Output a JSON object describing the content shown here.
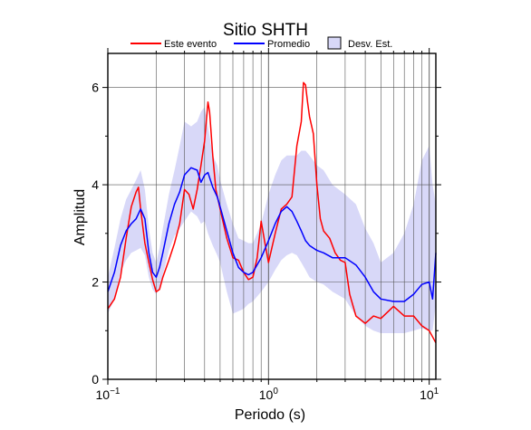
{
  "chart_data": {
    "type": "line",
    "title": "Sitio SHTH",
    "xlabel": "Periodo (s)",
    "ylabel": "Amplitud",
    "xscale": "log",
    "xlim": [
      0.1,
      11
    ],
    "ylim": [
      0,
      6.7
    ],
    "x_ticks": [
      {
        "value": 0.1,
        "base": "10",
        "exp": "−1"
      },
      {
        "value": 1,
        "base": "10",
        "exp": "0"
      },
      {
        "value": 10,
        "base": "10",
        "exp": "1"
      }
    ],
    "y_ticks": [
      0,
      2,
      4,
      6
    ],
    "grid": true,
    "legend_placement": "top",
    "legend": [
      {
        "label": "Este evento",
        "kind": "line",
        "color": "#ff0000"
      },
      {
        "label": "Promedio",
        "kind": "line",
        "color": "#0000ff"
      },
      {
        "label": "Desv. Est.",
        "kind": "box",
        "color": "#d8d8f8"
      }
    ],
    "series": [
      {
        "name": "Este evento",
        "color": "#ff0000",
        "x": [
          0.1,
          0.11,
          0.12,
          0.13,
          0.14,
          0.15,
          0.155,
          0.16,
          0.17,
          0.18,
          0.19,
          0.2,
          0.21,
          0.22,
          0.24,
          0.26,
          0.28,
          0.3,
          0.32,
          0.34,
          0.36,
          0.38,
          0.4,
          0.42,
          0.43,
          0.45,
          0.47,
          0.5,
          0.55,
          0.6,
          0.65,
          0.7,
          0.75,
          0.8,
          0.85,
          0.9,
          0.95,
          1.0,
          1.1,
          1.2,
          1.3,
          1.4,
          1.5,
          1.6,
          1.65,
          1.7,
          1.75,
          1.8,
          1.9,
          2.0,
          2.1,
          2.2,
          2.4,
          2.6,
          2.8,
          3.0,
          3.2,
          3.5,
          4.0,
          4.5,
          5.0,
          6.0,
          7.0,
          8.0,
          9.0,
          10.0,
          11.0
        ],
        "y": [
          1.45,
          1.65,
          2.1,
          2.9,
          3.55,
          3.85,
          3.95,
          3.5,
          2.8,
          2.4,
          2.05,
          1.8,
          1.85,
          2.1,
          2.45,
          2.8,
          3.2,
          3.9,
          3.8,
          3.5,
          3.9,
          4.4,
          4.9,
          5.7,
          5.5,
          4.6,
          3.9,
          3.5,
          2.9,
          2.5,
          2.45,
          2.2,
          2.05,
          2.1,
          2.5,
          3.25,
          2.8,
          2.4,
          3.0,
          3.5,
          3.6,
          3.75,
          4.8,
          5.3,
          6.1,
          6.05,
          5.7,
          5.4,
          5.05,
          4.0,
          3.3,
          3.05,
          2.9,
          2.6,
          2.45,
          2.4,
          1.75,
          1.3,
          1.15,
          1.3,
          1.25,
          1.5,
          1.3,
          1.3,
          1.1,
          1.0,
          0.75
        ]
      },
      {
        "name": "Promedio",
        "color": "#0000ff",
        "x": [
          0.1,
          0.11,
          0.12,
          0.13,
          0.14,
          0.15,
          0.16,
          0.17,
          0.18,
          0.19,
          0.2,
          0.21,
          0.22,
          0.24,
          0.26,
          0.28,
          0.3,
          0.33,
          0.36,
          0.38,
          0.4,
          0.42,
          0.45,
          0.48,
          0.5,
          0.55,
          0.6,
          0.65,
          0.7,
          0.75,
          0.8,
          0.9,
          1.0,
          1.1,
          1.2,
          1.3,
          1.4,
          1.5,
          1.6,
          1.7,
          1.8,
          2.0,
          2.2,
          2.5,
          3.0,
          3.5,
          4.0,
          4.5,
          5.0,
          6.0,
          7.0,
          8.0,
          9.0,
          10.0,
          10.5,
          11.0
        ],
        "y": [
          1.8,
          2.2,
          2.75,
          3.05,
          3.2,
          3.3,
          3.5,
          3.3,
          2.6,
          2.2,
          2.1,
          2.3,
          2.6,
          3.2,
          3.6,
          3.85,
          4.2,
          4.35,
          4.3,
          4.05,
          4.2,
          4.25,
          3.95,
          3.75,
          3.55,
          3.05,
          2.6,
          2.3,
          2.2,
          2.15,
          2.2,
          2.5,
          2.85,
          3.2,
          3.45,
          3.55,
          3.45,
          3.25,
          3.05,
          2.85,
          2.75,
          2.65,
          2.6,
          2.5,
          2.5,
          2.35,
          2.1,
          1.8,
          1.65,
          1.6,
          1.6,
          1.75,
          1.95,
          2.0,
          1.65,
          2.6
        ]
      }
    ],
    "band": {
      "name": "Desv. Est.",
      "color": "#d8d8f8",
      "x": [
        0.1,
        0.11,
        0.12,
        0.13,
        0.14,
        0.15,
        0.16,
        0.17,
        0.18,
        0.19,
        0.2,
        0.21,
        0.22,
        0.24,
        0.26,
        0.28,
        0.3,
        0.33,
        0.36,
        0.38,
        0.4,
        0.42,
        0.45,
        0.48,
        0.5,
        0.55,
        0.6,
        0.65,
        0.7,
        0.75,
        0.8,
        0.9,
        1.0,
        1.1,
        1.2,
        1.3,
        1.4,
        1.5,
        1.6,
        1.7,
        1.8,
        2.0,
        2.2,
        2.5,
        3.0,
        3.5,
        4.0,
        4.5,
        5.0,
        6.0,
        7.0,
        8.0,
        9.0,
        10.0,
        10.5,
        11.0
      ],
      "upper": [
        2.1,
        2.7,
        3.3,
        3.7,
        3.9,
        4.1,
        4.3,
        3.9,
        3.1,
        2.6,
        2.4,
        2.7,
        3.1,
        3.8,
        4.3,
        4.8,
        5.3,
        5.2,
        5.3,
        5.5,
        5.6,
        5.2,
        4.6,
        4.4,
        4.1,
        3.6,
        3.2,
        2.9,
        2.85,
        2.8,
        2.8,
        3.2,
        3.8,
        4.2,
        4.5,
        4.6,
        4.6,
        4.6,
        4.7,
        4.7,
        4.6,
        4.4,
        4.3,
        4.0,
        3.8,
        3.6,
        3.1,
        2.8,
        2.4,
        2.6,
        3.0,
        3.6,
        4.5,
        4.8,
        4.0,
        3.6
      ],
      "lower": [
        1.35,
        1.65,
        2.2,
        2.45,
        2.6,
        2.65,
        2.7,
        2.55,
        2.1,
        1.85,
        1.75,
        1.9,
        2.15,
        2.65,
        2.95,
        3.1,
        3.25,
        3.45,
        3.35,
        3.2,
        3.25,
        3.0,
        2.75,
        2.55,
        2.4,
        1.8,
        1.35,
        1.4,
        1.45,
        1.55,
        1.6,
        1.8,
        2.0,
        2.25,
        2.45,
        2.55,
        2.6,
        2.55,
        2.4,
        2.25,
        2.1,
        2.0,
        1.95,
        1.8,
        1.65,
        1.3,
        1.1,
        1.0,
        0.95,
        0.95,
        0.95,
        1.0,
        1.05,
        1.0,
        1.0,
        1.55
      ]
    }
  }
}
